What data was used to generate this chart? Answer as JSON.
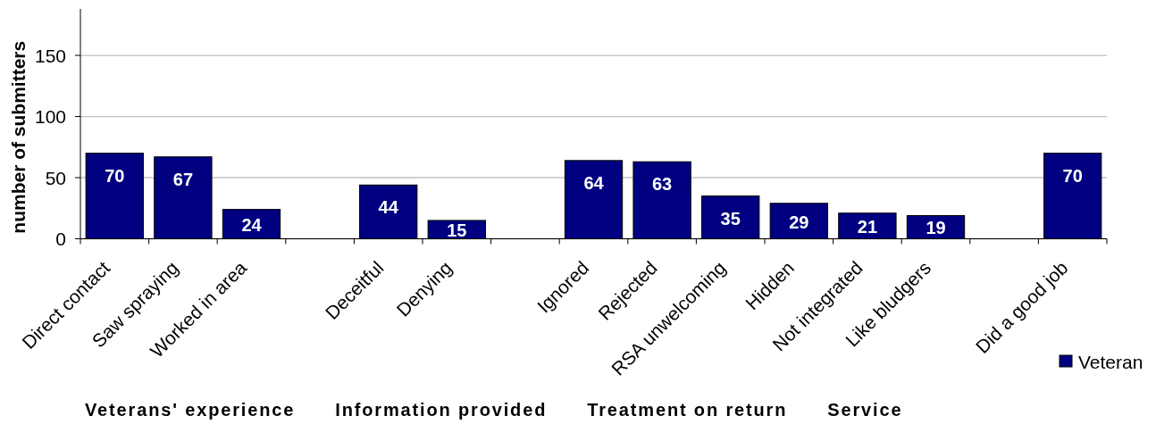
{
  "chart_data": {
    "type": "bar",
    "ylabel": "number of submitters",
    "categories": [
      "Direct contact",
      "Saw spraying",
      "Worked in area",
      null,
      "Deceitful",
      "Denying",
      null,
      "Ignored",
      "Rejected",
      "RSA unwelcoming",
      "Hidden",
      "Not integrated",
      "Like bludgers",
      null,
      "Did a good job"
    ],
    "series": [
      {
        "name": "Veteran",
        "color": "#000080",
        "values": [
          70,
          67,
          24,
          null,
          44,
          15,
          null,
          64,
          63,
          35,
          29,
          21,
          19,
          null,
          70
        ]
      }
    ],
    "ylim": [
      0,
      188
    ],
    "yticks": [
      0,
      50,
      100,
      150
    ],
    "grid": "y",
    "legend": "bottom right",
    "data_labels": true,
    "annotations": [
      "Veterans' experience",
      "Information provided",
      "Treatment on return",
      "Service"
    ]
  }
}
